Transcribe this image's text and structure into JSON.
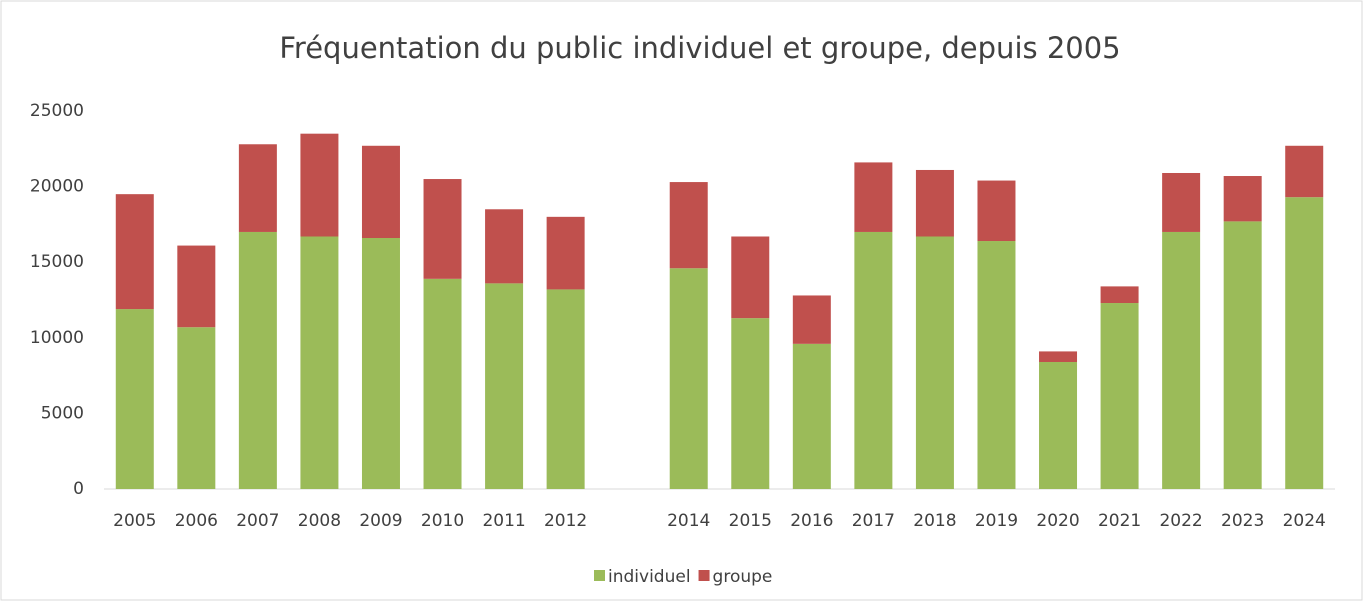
{
  "chart_data": {
    "type": "stacked_bar",
    "title": "Fréquentation du public individuel et groupe, depuis 2005",
    "categories": [
      "2005",
      "2006",
      "2007",
      "2008",
      "2009",
      "2010",
      "2011",
      "2012",
      null,
      "2014",
      "2015",
      "2016",
      "2017",
      "2018",
      "2019",
      "2020",
      "2021",
      "2022",
      "2023",
      "2024"
    ],
    "series": [
      {
        "name": "individuel",
        "color": "#9bbb59",
        "values": [
          11900,
          10700,
          17000,
          16700,
          16600,
          13900,
          13600,
          13200,
          null,
          14600,
          11300,
          9600,
          17000,
          16700,
          16400,
          8400,
          12300,
          17000,
          17700,
          19300
        ]
      },
      {
        "name": "groupe",
        "color": "#c0504d",
        "values": [
          7600,
          5400,
          5800,
          6800,
          6100,
          6600,
          4900,
          4800,
          null,
          5700,
          5400,
          3200,
          4600,
          4400,
          4000,
          700,
          1100,
          3900,
          3000,
          3400
        ]
      }
    ],
    "ylim": [
      0,
      25000
    ],
    "yticks": [
      0,
      5000,
      10000,
      15000,
      20000,
      25000
    ],
    "grid": false,
    "legend": "bottom"
  }
}
